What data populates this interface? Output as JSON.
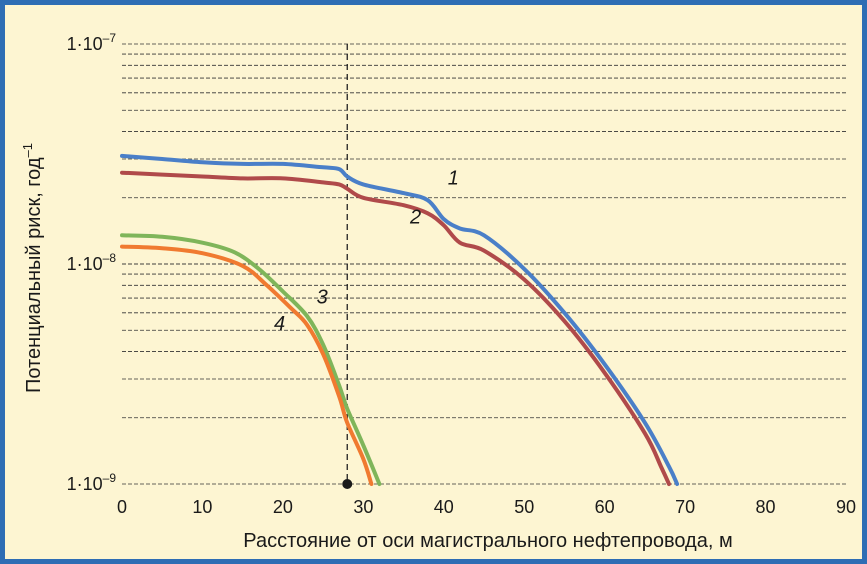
{
  "chart_data": {
    "type": "line",
    "xlabel": "Расстояние от оси магистрального нефтепровода, м",
    "ylabel": "Потенциальный риск, год",
    "ylabel_sup": "–1",
    "xlim": [
      0,
      90
    ],
    "ylim": [
      1e-09,
      1e-07
    ],
    "yscale": "log",
    "x_ticks": [
      0,
      10,
      20,
      30,
      40,
      50,
      60,
      70,
      80,
      90
    ],
    "y_ticks": [
      {
        "value": 1e-09,
        "mantissa": "1",
        "base": "10",
        "exponent": "–9"
      },
      {
        "value": 1e-08,
        "mantissa": "1",
        "base": "10",
        "exponent": "–8"
      },
      {
        "value": 1e-07,
        "mantissa": "1",
        "base": "10",
        "exponent": "–7"
      }
    ],
    "grid": "horizontal, dashed",
    "reference_line_x": 28,
    "marker_point": {
      "x": 28,
      "y": 1e-09
    },
    "series": [
      {
        "name": "1",
        "color": "#4a7fc8",
        "x": [
          0,
          5,
          10,
          15,
          20,
          25,
          27,
          28,
          30,
          35,
          38,
          40,
          42,
          45,
          50,
          55,
          60,
          65,
          68,
          69
        ],
        "y": [
          3.1e-08,
          3e-08,
          2.9e-08,
          2.85e-08,
          2.85e-08,
          2.75e-08,
          2.7e-08,
          2.5e-08,
          2.3e-08,
          2.1e-08,
          1.95e-08,
          1.6e-08,
          1.45e-08,
          1.35e-08,
          9.5e-09,
          6e-09,
          3.5e-09,
          1.9e-09,
          1.2e-09,
          1e-09
        ]
      },
      {
        "name": "2",
        "color": "#b04a4a",
        "x": [
          0,
          5,
          10,
          15,
          20,
          25,
          27,
          28,
          30,
          35,
          38,
          40,
          42,
          45,
          50,
          55,
          60,
          65,
          67,
          68
        ],
        "y": [
          2.6e-08,
          2.55e-08,
          2.5e-08,
          2.45e-08,
          2.45e-08,
          2.35e-08,
          2.3e-08,
          2.2e-08,
          2e-08,
          1.85e-08,
          1.7e-08,
          1.5e-08,
          1.25e-08,
          1.15e-08,
          8.5e-09,
          5.5e-09,
          3.2e-09,
          1.7e-09,
          1.2e-09,
          1e-09
        ]
      },
      {
        "name": "3",
        "color": "#7fb55a",
        "x": [
          0,
          5,
          10,
          14,
          17,
          20,
          23,
          25,
          27,
          28,
          30,
          32
        ],
        "y": [
          1.35e-08,
          1.33e-08,
          1.25e-08,
          1.13e-08,
          9.5e-09,
          7.5e-09,
          5.8e-09,
          4.3e-09,
          2.8e-09,
          2.2e-09,
          1.5e-09,
          1e-09
        ]
      },
      {
        "name": "4",
        "color": "#f07a30",
        "x": [
          0,
          5,
          10,
          15,
          18,
          21,
          23,
          25,
          27,
          28,
          30,
          31
        ],
        "y": [
          1.2e-08,
          1.18e-08,
          1.12e-08,
          9.8e-09,
          8e-09,
          6.3e-09,
          5.3e-09,
          3.9e-09,
          2.5e-09,
          1.9e-09,
          1.3e-09,
          1e-09
        ]
      }
    ],
    "series_labels": [
      {
        "text": "1",
        "x": 40.5,
        "y": 2.3e-08
      },
      {
        "text": "2",
        "x": 35.8,
        "y": 1.53e-08
      },
      {
        "text": "3",
        "x": 24.2,
        "y": 6.6e-09
      },
      {
        "text": "4",
        "x": 18.9,
        "y": 5e-09
      }
    ]
  }
}
